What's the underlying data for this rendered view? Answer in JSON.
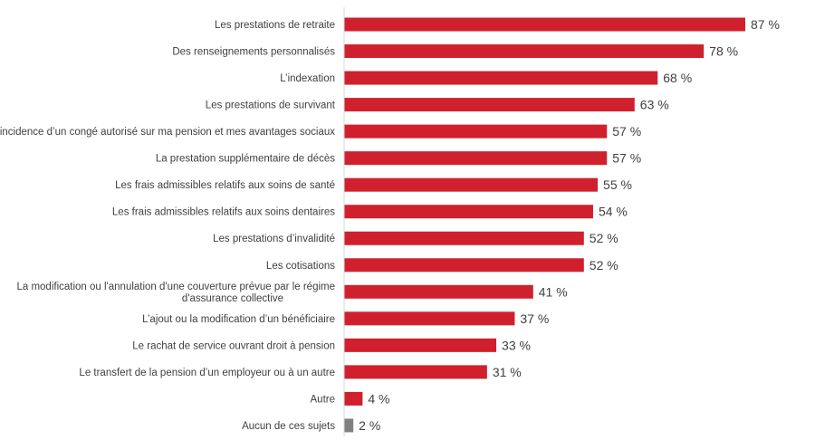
{
  "chart_data": {
    "type": "bar",
    "orientation": "horizontal",
    "categories": [
      "Les prestations de retraite",
      "Des renseignements personnalisés",
      "L’indexation",
      "Les prestations de survivant",
      "L’incidence d’un congé autorisé sur ma pension et mes avantages sociaux",
      "La prestation supplémentaire de décès",
      "Les frais admissibles relatifs aux soins de santé",
      "Les frais admissibles relatifs aux soins dentaires",
      "Les prestations d’invalidité",
      "Les cotisations",
      "La modification ou l'annulation d'une couverture prévue par le régime|d'assurance collective",
      "L’ajout ou la modification d’un bénéficiaire",
      "Le rachat de service ouvrant droit à pension",
      "Le transfert de la pension d’un employeur ou à un autre",
      "Autre",
      "Aucun de ces sujets"
    ],
    "values": [
      87,
      78,
      68,
      63,
      57,
      57,
      55,
      54,
      52,
      52,
      41,
      37,
      33,
      31,
      4,
      2
    ],
    "value_suffix": " %",
    "colors": [
      "#D0202E",
      "#D0202E",
      "#D0202E",
      "#D0202E",
      "#D0202E",
      "#D0202E",
      "#D0202E",
      "#D0202E",
      "#D0202E",
      "#D0202E",
      "#D0202E",
      "#D0202E",
      "#D0202E",
      "#D0202E",
      "#D0202E",
      "#808080"
    ],
    "axis_color": "#d9d9d9",
    "xlim": [
      0,
      100
    ],
    "grid": false,
    "title": "",
    "xlabel": "",
    "ylabel": ""
  }
}
